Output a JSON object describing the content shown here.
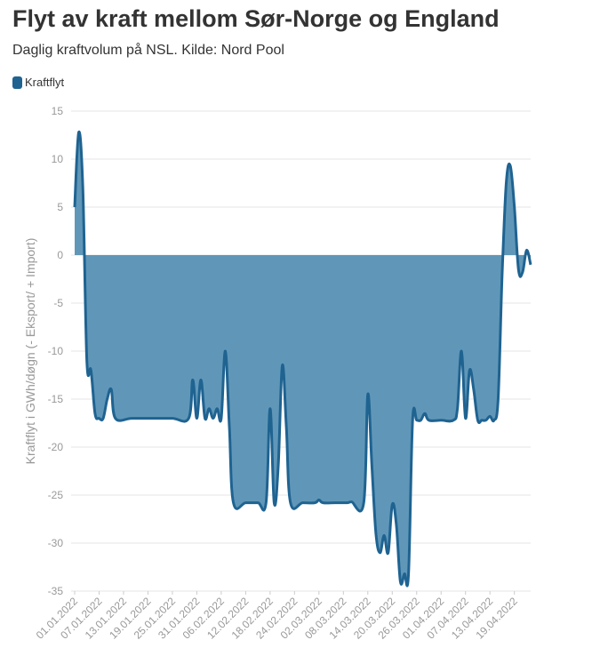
{
  "chart_data": {
    "type": "area",
    "title": "Flyt av kraft mellom Sør-Norge og England",
    "subtitle": "Daglig kraftvolum på NSL. Kilde: Nord Pool",
    "xlabel": "",
    "ylabel": "Kraftflyt i GWh/døgn (- Eksport/ + Import)",
    "ylim": [
      -35,
      15
    ],
    "yticks": [
      15,
      10,
      5,
      0,
      -5,
      -10,
      -15,
      -20,
      -25,
      -30,
      -35
    ],
    "grid": true,
    "legend_position": "top-left",
    "x_start": "2022-01-01",
    "x_end": "2022-04-23",
    "series": [
      {
        "name": "Kraftflyt",
        "color": "#1f6391",
        "fill": "#6097b8",
        "points": [
          [
            "2022-01-01",
            5
          ],
          [
            "2022-01-02",
            12.8
          ],
          [
            "2022-01-03",
            7
          ],
          [
            "2022-01-04",
            -11
          ],
          [
            "2022-01-05",
            -12
          ],
          [
            "2022-01-06",
            -16.5
          ],
          [
            "2022-01-07",
            -17
          ],
          [
            "2022-01-08",
            -17
          ],
          [
            "2022-01-09",
            -15
          ],
          [
            "2022-01-10",
            -14
          ],
          [
            "2022-01-11",
            -17
          ],
          [
            "2022-01-15",
            -17
          ],
          [
            "2022-01-20",
            -17
          ],
          [
            "2022-01-25",
            -17
          ],
          [
            "2022-01-29",
            -17
          ],
          [
            "2022-01-30",
            -13
          ],
          [
            "2022-01-31",
            -17
          ],
          [
            "2022-02-01",
            -13
          ],
          [
            "2022-02-02",
            -17
          ],
          [
            "2022-02-03",
            -16
          ],
          [
            "2022-02-04",
            -17
          ],
          [
            "2022-02-05",
            -16
          ],
          [
            "2022-02-06",
            -17
          ],
          [
            "2022-02-07",
            -10
          ],
          [
            "2022-02-08",
            -18
          ],
          [
            "2022-02-09",
            -25.8
          ],
          [
            "2022-02-12",
            -25.8
          ],
          [
            "2022-02-15",
            -25.8
          ],
          [
            "2022-02-17",
            -25.8
          ],
          [
            "2022-02-18",
            -16
          ],
          [
            "2022-02-19",
            -25.8
          ],
          [
            "2022-02-20",
            -22
          ],
          [
            "2022-02-21",
            -11.5
          ],
          [
            "2022-02-22",
            -18
          ],
          [
            "2022-02-23",
            -25.8
          ],
          [
            "2022-02-26",
            -25.8
          ],
          [
            "2022-03-01",
            -25.8
          ],
          [
            "2022-03-02",
            -25.5
          ],
          [
            "2022-03-03",
            -25.8
          ],
          [
            "2022-03-06",
            -25.8
          ],
          [
            "2022-03-09",
            -25.8
          ],
          [
            "2022-03-10",
            -25.7
          ],
          [
            "2022-03-13",
            -25.8
          ],
          [
            "2022-03-14",
            -14.5
          ],
          [
            "2022-03-15",
            -22
          ],
          [
            "2022-03-16",
            -29
          ],
          [
            "2022-03-17",
            -31
          ],
          [
            "2022-03-18",
            -29.2
          ],
          [
            "2022-03-19",
            -31
          ],
          [
            "2022-03-20",
            -26
          ],
          [
            "2022-03-21",
            -28
          ],
          [
            "2022-03-22",
            -34
          ],
          [
            "2022-03-23",
            -33.2
          ],
          [
            "2022-03-24",
            -33.2
          ],
          [
            "2022-03-25",
            -17.2
          ],
          [
            "2022-03-26",
            -17.2
          ],
          [
            "2022-03-27",
            -17.2
          ],
          [
            "2022-03-28",
            -16.5
          ],
          [
            "2022-03-29",
            -17.2
          ],
          [
            "2022-04-01",
            -17.2
          ],
          [
            "2022-04-04",
            -17.2
          ],
          [
            "2022-04-05",
            -16
          ],
          [
            "2022-04-06",
            -10
          ],
          [
            "2022-04-07",
            -17
          ],
          [
            "2022-04-08",
            -12
          ],
          [
            "2022-04-09",
            -14
          ],
          [
            "2022-04-10",
            -17.2
          ],
          [
            "2022-04-11",
            -17.2
          ],
          [
            "2022-04-12",
            -17.2
          ],
          [
            "2022-04-13",
            -16.8
          ],
          [
            "2022-04-14",
            -17.2
          ],
          [
            "2022-04-15",
            -15
          ],
          [
            "2022-04-16",
            -2
          ],
          [
            "2022-04-17",
            7.5
          ],
          [
            "2022-04-18",
            9.3
          ],
          [
            "2022-04-19",
            5
          ],
          [
            "2022-04-20",
            -1.5
          ],
          [
            "2022-04-21",
            -1.8
          ],
          [
            "2022-04-22",
            0.5
          ],
          [
            "2022-04-23",
            -1
          ]
        ]
      }
    ],
    "xtick_labels": [
      "01.01.2022",
      "07.01.2022",
      "13.01.2022",
      "19.01.2022",
      "25.01.2022",
      "31.01.2022",
      "06.02.2022",
      "12.02.2022",
      "18.02.2022",
      "24.02.2022",
      "02.03.2022",
      "08.03.2022",
      "14.03.2022",
      "20.03.2022",
      "26.03.2022",
      "01.04.2022",
      "07.04.2022",
      "13.04.2022",
      "19.04.2022"
    ]
  }
}
